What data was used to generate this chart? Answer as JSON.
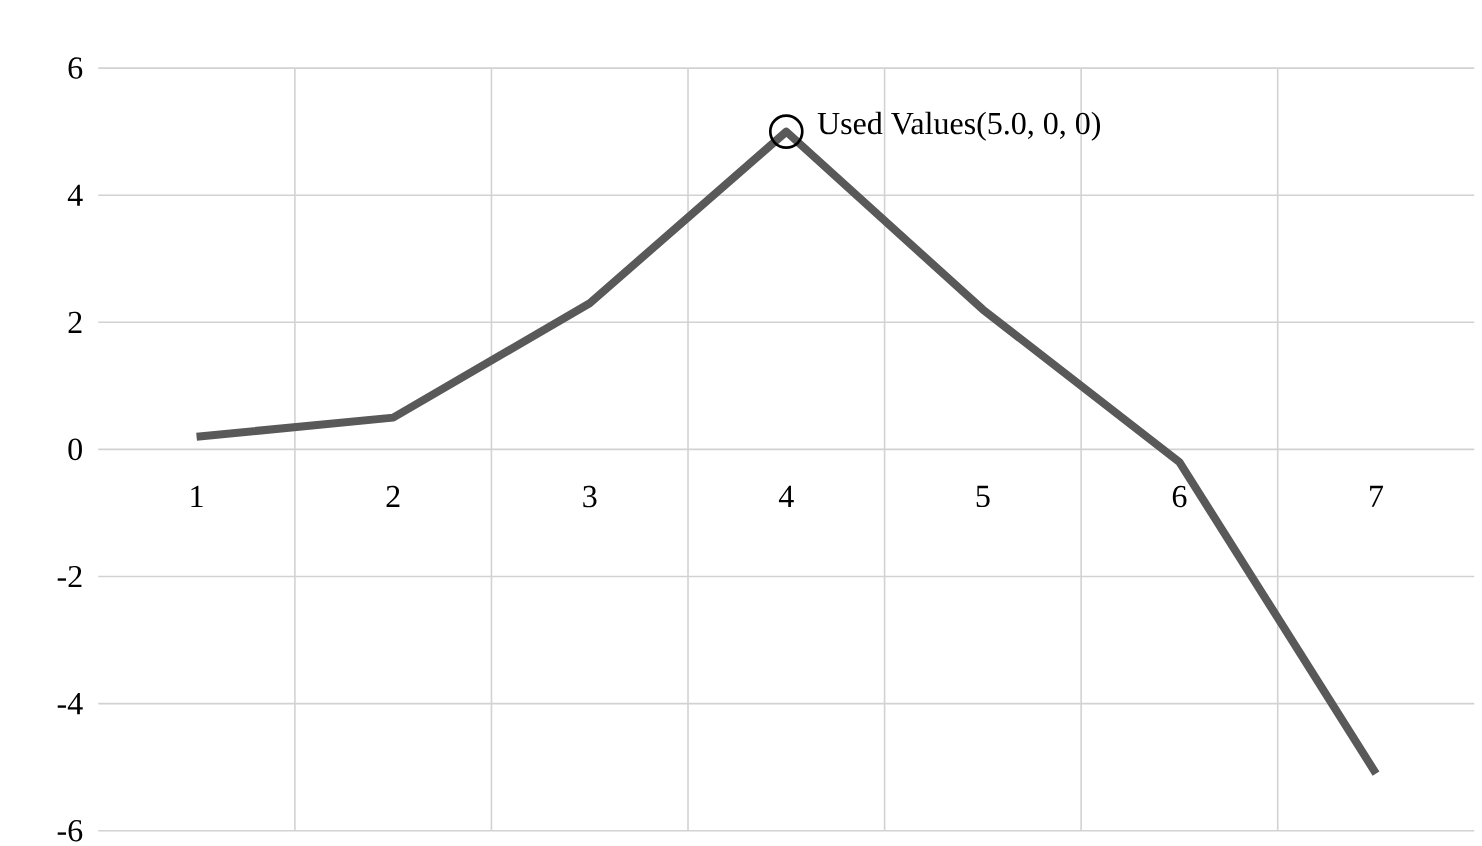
{
  "chart_data": {
    "type": "line",
    "categories": [
      "1",
      "2",
      "3",
      "4",
      "5",
      "6",
      "7"
    ],
    "series": [
      {
        "color": "#595959",
        "values": [
          0.2,
          0.5,
          2.3,
          5.0,
          2.2,
          -0.2,
          -5.1
        ]
      }
    ],
    "ylim": [
      -6,
      6
    ],
    "yticks": [
      -6,
      -4,
      -2,
      0,
      2,
      4,
      6
    ],
    "grid": true,
    "marker": "none",
    "line_style": "solid",
    "annotations": [
      {
        "text": "Used Values(5.0, 0, 0)",
        "x": "4",
        "y": 5
      }
    ]
  }
}
